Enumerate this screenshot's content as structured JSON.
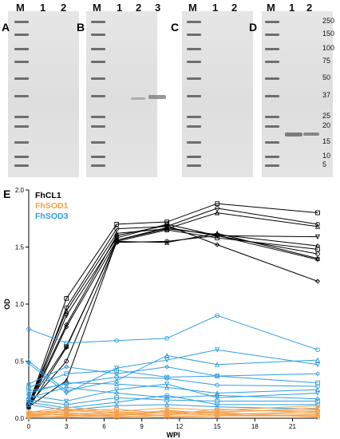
{
  "gel": {
    "panels": [
      {
        "letter": "A",
        "lanes": [
          "M",
          "1",
          "2"
        ]
      },
      {
        "letter": "B",
        "lanes": [
          "M",
          "1",
          "2",
          "3"
        ]
      },
      {
        "letter": "C",
        "lanes": [
          "M",
          "1",
          "2"
        ]
      },
      {
        "letter": "D",
        "lanes": [
          "M",
          "1",
          "2"
        ]
      }
    ],
    "mw_markers": [
      "250",
      "150",
      "100",
      "75",
      "50",
      "37",
      "25",
      "20",
      "15",
      "10",
      "5"
    ]
  },
  "chart_data": {
    "type": "line",
    "panel_letter": "E",
    "xlabel": "WPI",
    "ylabel": "OD",
    "xlim": [
      0,
      23
    ],
    "ylim": [
      0,
      2.0
    ],
    "xticks": [
      0,
      3,
      6,
      9,
      12,
      15,
      18,
      21
    ],
    "yticks": [
      0.0,
      0.5,
      1.0,
      1.5,
      2.0
    ],
    "legend": [
      {
        "label": "FhCL1",
        "color": "#000000"
      },
      {
        "label": "FhSOD1",
        "color": "#f5a04a"
      },
      {
        "label": "FhSOD3",
        "color": "#2f9ee0"
      }
    ],
    "x": [
      0,
      3,
      7,
      11,
      15,
      23
    ],
    "groups": [
      {
        "color": "#000000",
        "lines": [
          [
            0.12,
            1.05,
            1.7,
            1.72,
            1.88,
            1.8
          ],
          [
            0.1,
            0.97,
            1.66,
            1.68,
            1.84,
            1.7
          ],
          [
            0.13,
            0.94,
            1.62,
            1.66,
            1.8,
            1.68
          ],
          [
            0.11,
            0.9,
            1.58,
            1.7,
            1.6,
            1.59
          ],
          [
            0.1,
            0.8,
            1.56,
            1.66,
            1.61,
            1.51
          ],
          [
            0.14,
            0.63,
            1.55,
            1.65,
            1.58,
            1.48
          ],
          [
            0.12,
            0.5,
            1.54,
            1.55,
            1.6,
            1.44
          ],
          [
            0.1,
            0.33,
            1.55,
            1.54,
            1.62,
            1.4
          ],
          [
            0.09,
            0.62,
            1.56,
            1.67,
            1.6,
            1.39
          ],
          [
            0.12,
            0.82,
            1.6,
            1.69,
            1.52,
            1.2
          ]
        ]
      },
      {
        "color": "#2f9ee0",
        "lines": [
          [
            0.78,
            0.66,
            0.68,
            0.7,
            0.9,
            0.6
          ],
          [
            0.5,
            0.24,
            0.33,
            0.55,
            0.47,
            0.51
          ],
          [
            0.48,
            0.22,
            0.44,
            0.51,
            0.6,
            0.47
          ],
          [
            0.3,
            0.45,
            0.39,
            0.45,
            0.37,
            0.39
          ],
          [
            0.27,
            0.39,
            0.42,
            0.36,
            0.37,
            0.31
          ],
          [
            0.24,
            0.3,
            0.36,
            0.35,
            0.29,
            0.28
          ],
          [
            0.22,
            0.31,
            0.3,
            0.27,
            0.22,
            0.25
          ],
          [
            0.2,
            0.15,
            0.25,
            0.3,
            0.18,
            0.22
          ],
          [
            0.18,
            0.27,
            0.22,
            0.18,
            0.2,
            0.17
          ],
          [
            0.16,
            0.12,
            0.18,
            0.16,
            0.15,
            0.15
          ],
          [
            0.14,
            0.09,
            0.14,
            0.2,
            0.12,
            0.12
          ],
          [
            0.12,
            0.07,
            0.11,
            0.12,
            0.1,
            0.08
          ]
        ]
      },
      {
        "color": "#f5a04a",
        "lines": [
          [
            0.05,
            0.1,
            0.06,
            0.09,
            0.07,
            0.11
          ],
          [
            0.04,
            0.08,
            0.05,
            0.06,
            0.05,
            0.09
          ],
          [
            0.03,
            0.07,
            0.04,
            0.05,
            0.06,
            0.07
          ],
          [
            0.02,
            0.06,
            0.08,
            0.04,
            0.03,
            0.06
          ],
          [
            0.06,
            0.05,
            0.03,
            0.03,
            0.08,
            0.05
          ],
          [
            0.02,
            0.04,
            0.02,
            0.07,
            0.04,
            0.04
          ],
          [
            0.03,
            0.03,
            0.05,
            0.02,
            0.02,
            0.03
          ],
          [
            0.01,
            0.02,
            0.03,
            0.05,
            0.03,
            0.02
          ],
          [
            0.04,
            0.03,
            0.01,
            0.03,
            0.05,
            0.01
          ],
          [
            0.02,
            0.01,
            0.02,
            0.01,
            0.02,
            0.02
          ]
        ]
      }
    ]
  }
}
